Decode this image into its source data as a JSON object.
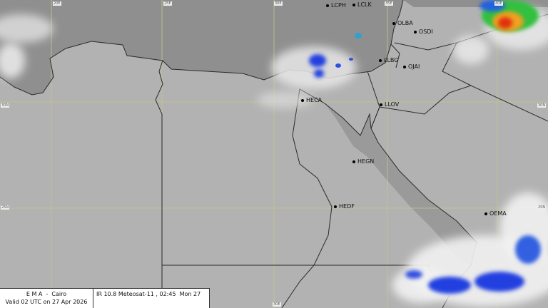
{
  "info": {
    "agency": "E M A  -  Cairo",
    "valid": "Valid 02 UTC on 27 Apr 2026",
    "product": "IR 10.8 Meteosat-11 , 02:45  Mon 27"
  },
  "grid_labels": {
    "lon": [
      "20E",
      "25E",
      "30E",
      "35E",
      "40E"
    ],
    "lat": [
      "30N",
      "25N"
    ],
    "bottom_lon": "30E"
  },
  "stations": [
    "LCPH",
    "LCLK",
    "OLBA",
    "OSDI",
    "LLBG",
    "OJAI",
    "HECA",
    "LLOV",
    "HEGN",
    "HEDF",
    "OEMA"
  ],
  "colors": {
    "sea": "#8e8e8e",
    "land": "#b4b4b4",
    "grid": "#c8c48a",
    "border": "#2a2a2a",
    "cold_cloud": "#2040e0",
    "storm_core": "#e03010"
  }
}
